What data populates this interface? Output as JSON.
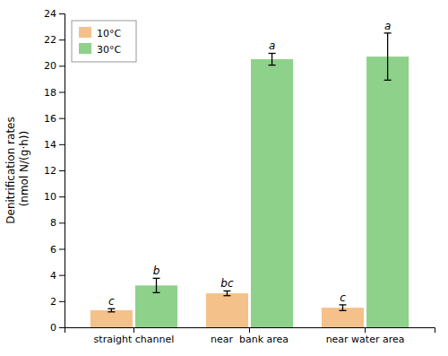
{
  "chart_data": {
    "type": "bar",
    "ylabel": "Denitrification rates\n (nmol N/(g·h))",
    "categories": [
      "straight channel",
      "near  bank area",
      "near water area"
    ],
    "series": [
      {
        "name": "10°C",
        "color": "#F5C18A",
        "values": [
          1.3,
          2.6,
          1.5
        ],
        "errors": [
          0.12,
          0.18,
          0.22
        ],
        "sig_labels": [
          "c",
          "bc",
          "c"
        ]
      },
      {
        "name": "30°C",
        "color": "#8DD18A",
        "values": [
          3.2,
          20.5,
          20.7
        ],
        "errors": [
          0.55,
          0.45,
          1.8
        ],
        "sig_labels": [
          "b",
          "a",
          "a"
        ]
      }
    ],
    "ylim": [
      0,
      24
    ],
    "yticks": [
      0,
      2,
      4,
      6,
      8,
      10,
      12,
      14,
      16,
      18,
      20,
      22,
      24
    ],
    "legend": "upper left",
    "grid": false
  }
}
